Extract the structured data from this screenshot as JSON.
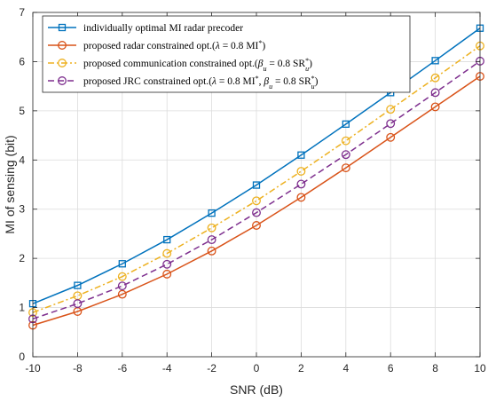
{
  "chart_data": {
    "type": "line",
    "xlabel": "SNR (dB)",
    "ylabel": "MI of sensing (bit)",
    "x": [
      -10,
      -8,
      -6,
      -4,
      -2,
      0,
      2,
      4,
      6,
      8,
      10
    ],
    "xlim": [
      -10,
      10
    ],
    "ylim": [
      0,
      7
    ],
    "xticks": [
      "-10",
      "-8",
      "-6",
      "-4",
      "-2",
      "0",
      "2",
      "4",
      "6",
      "8",
      "10"
    ],
    "yticks": [
      "0",
      "1",
      "2",
      "3",
      "4",
      "5",
      "6",
      "7"
    ],
    "grid": true,
    "legend_position": "top-left",
    "series": [
      {
        "name": "individually optimal MI radar precoder",
        "color": "#0072BD",
        "marker": "square",
        "line_style": "solid",
        "values": [
          1.08,
          1.45,
          1.89,
          2.38,
          2.92,
          3.49,
          4.1,
          4.73,
          5.37,
          6.02,
          6.68
        ]
      },
      {
        "name": "proposed radar constrained opt.(λ = 0.8 MI*)",
        "color": "#D95319",
        "marker": "circle",
        "line_style": "solid",
        "values": [
          0.64,
          0.92,
          1.27,
          1.68,
          2.15,
          2.67,
          3.24,
          3.84,
          4.46,
          5.08,
          5.7
        ]
      },
      {
        "name": "proposed communication constrained opt.(βu = 0.8 SR*u)",
        "color": "#EDB120",
        "marker": "circle",
        "line_style": "dashdot",
        "values": [
          0.9,
          1.24,
          1.63,
          2.1,
          2.62,
          3.17,
          3.77,
          4.39,
          5.03,
          5.67,
          6.32
        ]
      },
      {
        "name": "proposed JRC constrained opt.(λ = 0.8 MI*, βu = 0.8 SR*u)",
        "color": "#7E2F8E",
        "marker": "circle",
        "line_style": "dashed",
        "values": [
          0.77,
          1.08,
          1.44,
          1.88,
          2.38,
          2.93,
          3.51,
          4.11,
          4.74,
          5.37,
          6.01
        ]
      }
    ]
  }
}
